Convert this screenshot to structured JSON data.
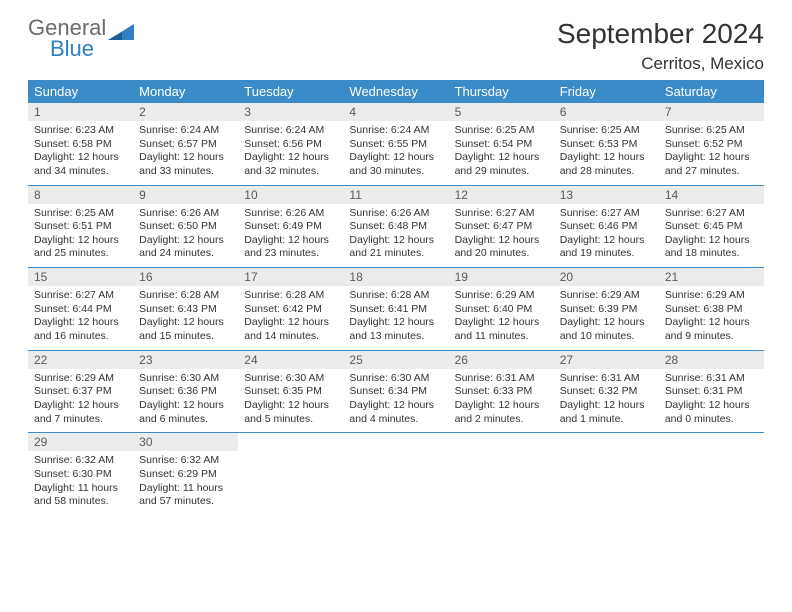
{
  "logo": {
    "general": "General",
    "blue": "Blue"
  },
  "title": "September 2024",
  "location": "Cerritos, Mexico",
  "colors": {
    "header_bg": "#3b8bc9",
    "header_fg": "#ffffff",
    "daynum_bg": "#ececec",
    "rule": "#3b8bc9",
    "logo_gray": "#6b6b6b",
    "logo_blue": "#2f7fc2"
  },
  "weekdays": [
    "Sunday",
    "Monday",
    "Tuesday",
    "Wednesday",
    "Thursday",
    "Friday",
    "Saturday"
  ],
  "weeks": [
    [
      {
        "n": "1",
        "sr": "Sunrise: 6:23 AM",
        "ss": "Sunset: 6:58 PM",
        "dl1": "Daylight: 12 hours",
        "dl2": "and 34 minutes."
      },
      {
        "n": "2",
        "sr": "Sunrise: 6:24 AM",
        "ss": "Sunset: 6:57 PM",
        "dl1": "Daylight: 12 hours",
        "dl2": "and 33 minutes."
      },
      {
        "n": "3",
        "sr": "Sunrise: 6:24 AM",
        "ss": "Sunset: 6:56 PM",
        "dl1": "Daylight: 12 hours",
        "dl2": "and 32 minutes."
      },
      {
        "n": "4",
        "sr": "Sunrise: 6:24 AM",
        "ss": "Sunset: 6:55 PM",
        "dl1": "Daylight: 12 hours",
        "dl2": "and 30 minutes."
      },
      {
        "n": "5",
        "sr": "Sunrise: 6:25 AM",
        "ss": "Sunset: 6:54 PM",
        "dl1": "Daylight: 12 hours",
        "dl2": "and 29 minutes."
      },
      {
        "n": "6",
        "sr": "Sunrise: 6:25 AM",
        "ss": "Sunset: 6:53 PM",
        "dl1": "Daylight: 12 hours",
        "dl2": "and 28 minutes."
      },
      {
        "n": "7",
        "sr": "Sunrise: 6:25 AM",
        "ss": "Sunset: 6:52 PM",
        "dl1": "Daylight: 12 hours",
        "dl2": "and 27 minutes."
      }
    ],
    [
      {
        "n": "8",
        "sr": "Sunrise: 6:25 AM",
        "ss": "Sunset: 6:51 PM",
        "dl1": "Daylight: 12 hours",
        "dl2": "and 25 minutes."
      },
      {
        "n": "9",
        "sr": "Sunrise: 6:26 AM",
        "ss": "Sunset: 6:50 PM",
        "dl1": "Daylight: 12 hours",
        "dl2": "and 24 minutes."
      },
      {
        "n": "10",
        "sr": "Sunrise: 6:26 AM",
        "ss": "Sunset: 6:49 PM",
        "dl1": "Daylight: 12 hours",
        "dl2": "and 23 minutes."
      },
      {
        "n": "11",
        "sr": "Sunrise: 6:26 AM",
        "ss": "Sunset: 6:48 PM",
        "dl1": "Daylight: 12 hours",
        "dl2": "and 21 minutes."
      },
      {
        "n": "12",
        "sr": "Sunrise: 6:27 AM",
        "ss": "Sunset: 6:47 PM",
        "dl1": "Daylight: 12 hours",
        "dl2": "and 20 minutes."
      },
      {
        "n": "13",
        "sr": "Sunrise: 6:27 AM",
        "ss": "Sunset: 6:46 PM",
        "dl1": "Daylight: 12 hours",
        "dl2": "and 19 minutes."
      },
      {
        "n": "14",
        "sr": "Sunrise: 6:27 AM",
        "ss": "Sunset: 6:45 PM",
        "dl1": "Daylight: 12 hours",
        "dl2": "and 18 minutes."
      }
    ],
    [
      {
        "n": "15",
        "sr": "Sunrise: 6:27 AM",
        "ss": "Sunset: 6:44 PM",
        "dl1": "Daylight: 12 hours",
        "dl2": "and 16 minutes."
      },
      {
        "n": "16",
        "sr": "Sunrise: 6:28 AM",
        "ss": "Sunset: 6:43 PM",
        "dl1": "Daylight: 12 hours",
        "dl2": "and 15 minutes."
      },
      {
        "n": "17",
        "sr": "Sunrise: 6:28 AM",
        "ss": "Sunset: 6:42 PM",
        "dl1": "Daylight: 12 hours",
        "dl2": "and 14 minutes."
      },
      {
        "n": "18",
        "sr": "Sunrise: 6:28 AM",
        "ss": "Sunset: 6:41 PM",
        "dl1": "Daylight: 12 hours",
        "dl2": "and 13 minutes."
      },
      {
        "n": "19",
        "sr": "Sunrise: 6:29 AM",
        "ss": "Sunset: 6:40 PM",
        "dl1": "Daylight: 12 hours",
        "dl2": "and 11 minutes."
      },
      {
        "n": "20",
        "sr": "Sunrise: 6:29 AM",
        "ss": "Sunset: 6:39 PM",
        "dl1": "Daylight: 12 hours",
        "dl2": "and 10 minutes."
      },
      {
        "n": "21",
        "sr": "Sunrise: 6:29 AM",
        "ss": "Sunset: 6:38 PM",
        "dl1": "Daylight: 12 hours",
        "dl2": "and 9 minutes."
      }
    ],
    [
      {
        "n": "22",
        "sr": "Sunrise: 6:29 AM",
        "ss": "Sunset: 6:37 PM",
        "dl1": "Daylight: 12 hours",
        "dl2": "and 7 minutes."
      },
      {
        "n": "23",
        "sr": "Sunrise: 6:30 AM",
        "ss": "Sunset: 6:36 PM",
        "dl1": "Daylight: 12 hours",
        "dl2": "and 6 minutes."
      },
      {
        "n": "24",
        "sr": "Sunrise: 6:30 AM",
        "ss": "Sunset: 6:35 PM",
        "dl1": "Daylight: 12 hours",
        "dl2": "and 5 minutes."
      },
      {
        "n": "25",
        "sr": "Sunrise: 6:30 AM",
        "ss": "Sunset: 6:34 PM",
        "dl1": "Daylight: 12 hours",
        "dl2": "and 4 minutes."
      },
      {
        "n": "26",
        "sr": "Sunrise: 6:31 AM",
        "ss": "Sunset: 6:33 PM",
        "dl1": "Daylight: 12 hours",
        "dl2": "and 2 minutes."
      },
      {
        "n": "27",
        "sr": "Sunrise: 6:31 AM",
        "ss": "Sunset: 6:32 PM",
        "dl1": "Daylight: 12 hours",
        "dl2": "and 1 minute."
      },
      {
        "n": "28",
        "sr": "Sunrise: 6:31 AM",
        "ss": "Sunset: 6:31 PM",
        "dl1": "Daylight: 12 hours",
        "dl2": "and 0 minutes."
      }
    ],
    [
      {
        "n": "29",
        "sr": "Sunrise: 6:32 AM",
        "ss": "Sunset: 6:30 PM",
        "dl1": "Daylight: 11 hours",
        "dl2": "and 58 minutes."
      },
      {
        "n": "30",
        "sr": "Sunrise: 6:32 AM",
        "ss": "Sunset: 6:29 PM",
        "dl1": "Daylight: 11 hours",
        "dl2": "and 57 minutes."
      },
      {
        "empty": true
      },
      {
        "empty": true
      },
      {
        "empty": true
      },
      {
        "empty": true
      },
      {
        "empty": true
      }
    ]
  ]
}
